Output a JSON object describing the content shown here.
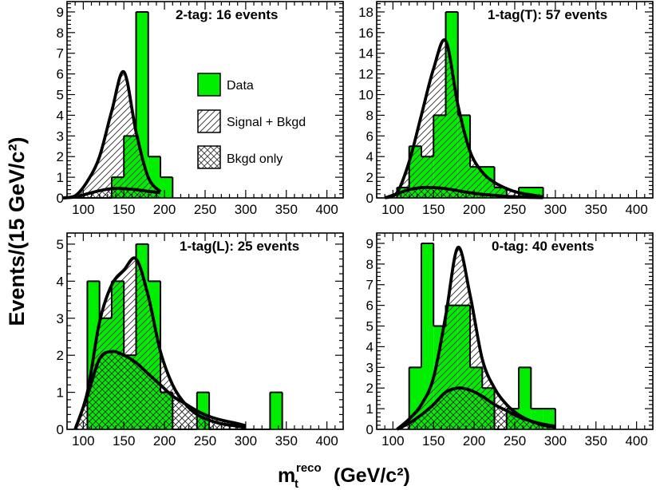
{
  "figure": {
    "ylabel": "Events/(15 GeV/c²)",
    "xlabel_main": "m",
    "xlabel_sub": "t",
    "xlabel_sup": "reco",
    "xlabel_units": "(GeV/c²)"
  },
  "legend": {
    "data": "Data",
    "signal_bkgd": "Signal + Bkgd",
    "bkgd_only": "Bkgd only"
  },
  "colors": {
    "data_fill": "#00ee00",
    "line": "#000000",
    "signal_hatch": "#444444",
    "bkgd_hatch": "#333333"
  },
  "chart_data": [
    {
      "type": "histogram",
      "title": "2-tag: 16 events",
      "bin_edges": [
        90,
        105,
        120,
        135,
        150,
        165,
        180,
        195,
        210
      ],
      "data_counts": [
        0,
        0,
        0,
        1,
        3,
        9,
        2,
        1
      ],
      "fit_signal_plus_bkgd": [
        0,
        0.1,
        0.8,
        2.0,
        4.2,
        6.1,
        3.2,
        1.0,
        0.3
      ],
      "fit_bkgd_only": [
        0,
        0.05,
        0.2,
        0.35,
        0.45,
        0.45,
        0.4,
        0.32,
        0.25
      ],
      "xlim": [
        80,
        420
      ],
      "ylim": [
        0,
        9.5
      ],
      "xticks": [
        100,
        150,
        200,
        250,
        300,
        350,
        400
      ],
      "yticks": [
        0,
        1,
        2,
        3,
        4,
        5,
        6,
        7,
        8,
        9
      ]
    },
    {
      "type": "histogram",
      "title": "1-tag(T): 57 events",
      "bin_edges": [
        105,
        120,
        135,
        150,
        165,
        180,
        195,
        210,
        225,
        240,
        255,
        270,
        285
      ],
      "data_counts": [
        1,
        5,
        4,
        8,
        18,
        8,
        3,
        3,
        1,
        0,
        1,
        1
      ],
      "fit_signal_plus_bkgd": [
        0,
        0.5,
        3.5,
        8.0,
        12.5,
        15.2,
        9.0,
        4.5,
        2.5,
        1.5,
        0.9,
        0.5,
        0.3,
        0.1
      ],
      "fit_bkgd_only": [
        0,
        0.4,
        0.8,
        1.0,
        1.0,
        0.9,
        0.7,
        0.5,
        0.35,
        0.25,
        0.15,
        0.1,
        0.05,
        0.03
      ],
      "xlim": [
        80,
        420
      ],
      "ylim": [
        0,
        19
      ],
      "xticks": [
        100,
        150,
        200,
        250,
        300,
        350,
        400
      ],
      "yticks": [
        0,
        2,
        4,
        6,
        8,
        10,
        12,
        14,
        16,
        18
      ]
    },
    {
      "type": "histogram",
      "title": "1-tag(L): 25 events",
      "bin_edges": [
        105,
        120,
        135,
        150,
        165,
        180,
        195,
        210,
        225,
        240,
        255,
        270,
        285,
        300,
        315,
        330,
        345
      ],
      "data_counts": [
        4,
        3,
        4,
        2,
        5,
        4,
        1,
        0,
        0,
        1,
        0,
        0,
        0,
        0,
        0,
        1
      ],
      "fit_signal_plus_bkgd": [
        0,
        1.0,
        2.9,
        3.9,
        4.3,
        4.6,
        3.6,
        2.1,
        1.2,
        0.7,
        0.4,
        0.25,
        0.15,
        0.1,
        0.05
      ],
      "fit_bkgd_only": [
        0,
        0.9,
        1.9,
        2.1,
        2.0,
        1.8,
        1.5,
        1.2,
        0.9,
        0.7,
        0.5,
        0.35,
        0.25,
        0.18,
        0.1
      ],
      "xlim": [
        80,
        420
      ],
      "ylim": [
        0,
        5.3
      ],
      "xticks": [
        100,
        150,
        200,
        250,
        300,
        350,
        400
      ],
      "yticks": [
        0,
        1,
        2,
        3,
        4,
        5
      ]
    },
    {
      "type": "histogram",
      "title": "0-tag: 40 events",
      "bin_edges": [
        120,
        135,
        150,
        165,
        180,
        195,
        210,
        225,
        240,
        255,
        270,
        285,
        300
      ],
      "data_counts": [
        3,
        9,
        5,
        6,
        6,
        3,
        2,
        0,
        1,
        3,
        1,
        1
      ],
      "fit_signal_plus_bkgd": [
        0,
        0.5,
        1.2,
        2.5,
        5.5,
        8.8,
        6.5,
        3.4,
        2.0,
        1.2,
        0.7,
        0.4,
        0.2,
        0.1
      ],
      "fit_bkgd_only": [
        0,
        0.3,
        0.7,
        1.2,
        1.8,
        2.0,
        1.9,
        1.6,
        1.2,
        0.9,
        0.6,
        0.4,
        0.25,
        0.15
      ],
      "xlim": [
        80,
        420
      ],
      "ylim": [
        0,
        9.5
      ],
      "xticks": [
        100,
        150,
        200,
        250,
        300,
        350,
        400
      ],
      "yticks": [
        0,
        1,
        2,
        3,
        4,
        5,
        6,
        7,
        8,
        9
      ]
    }
  ]
}
